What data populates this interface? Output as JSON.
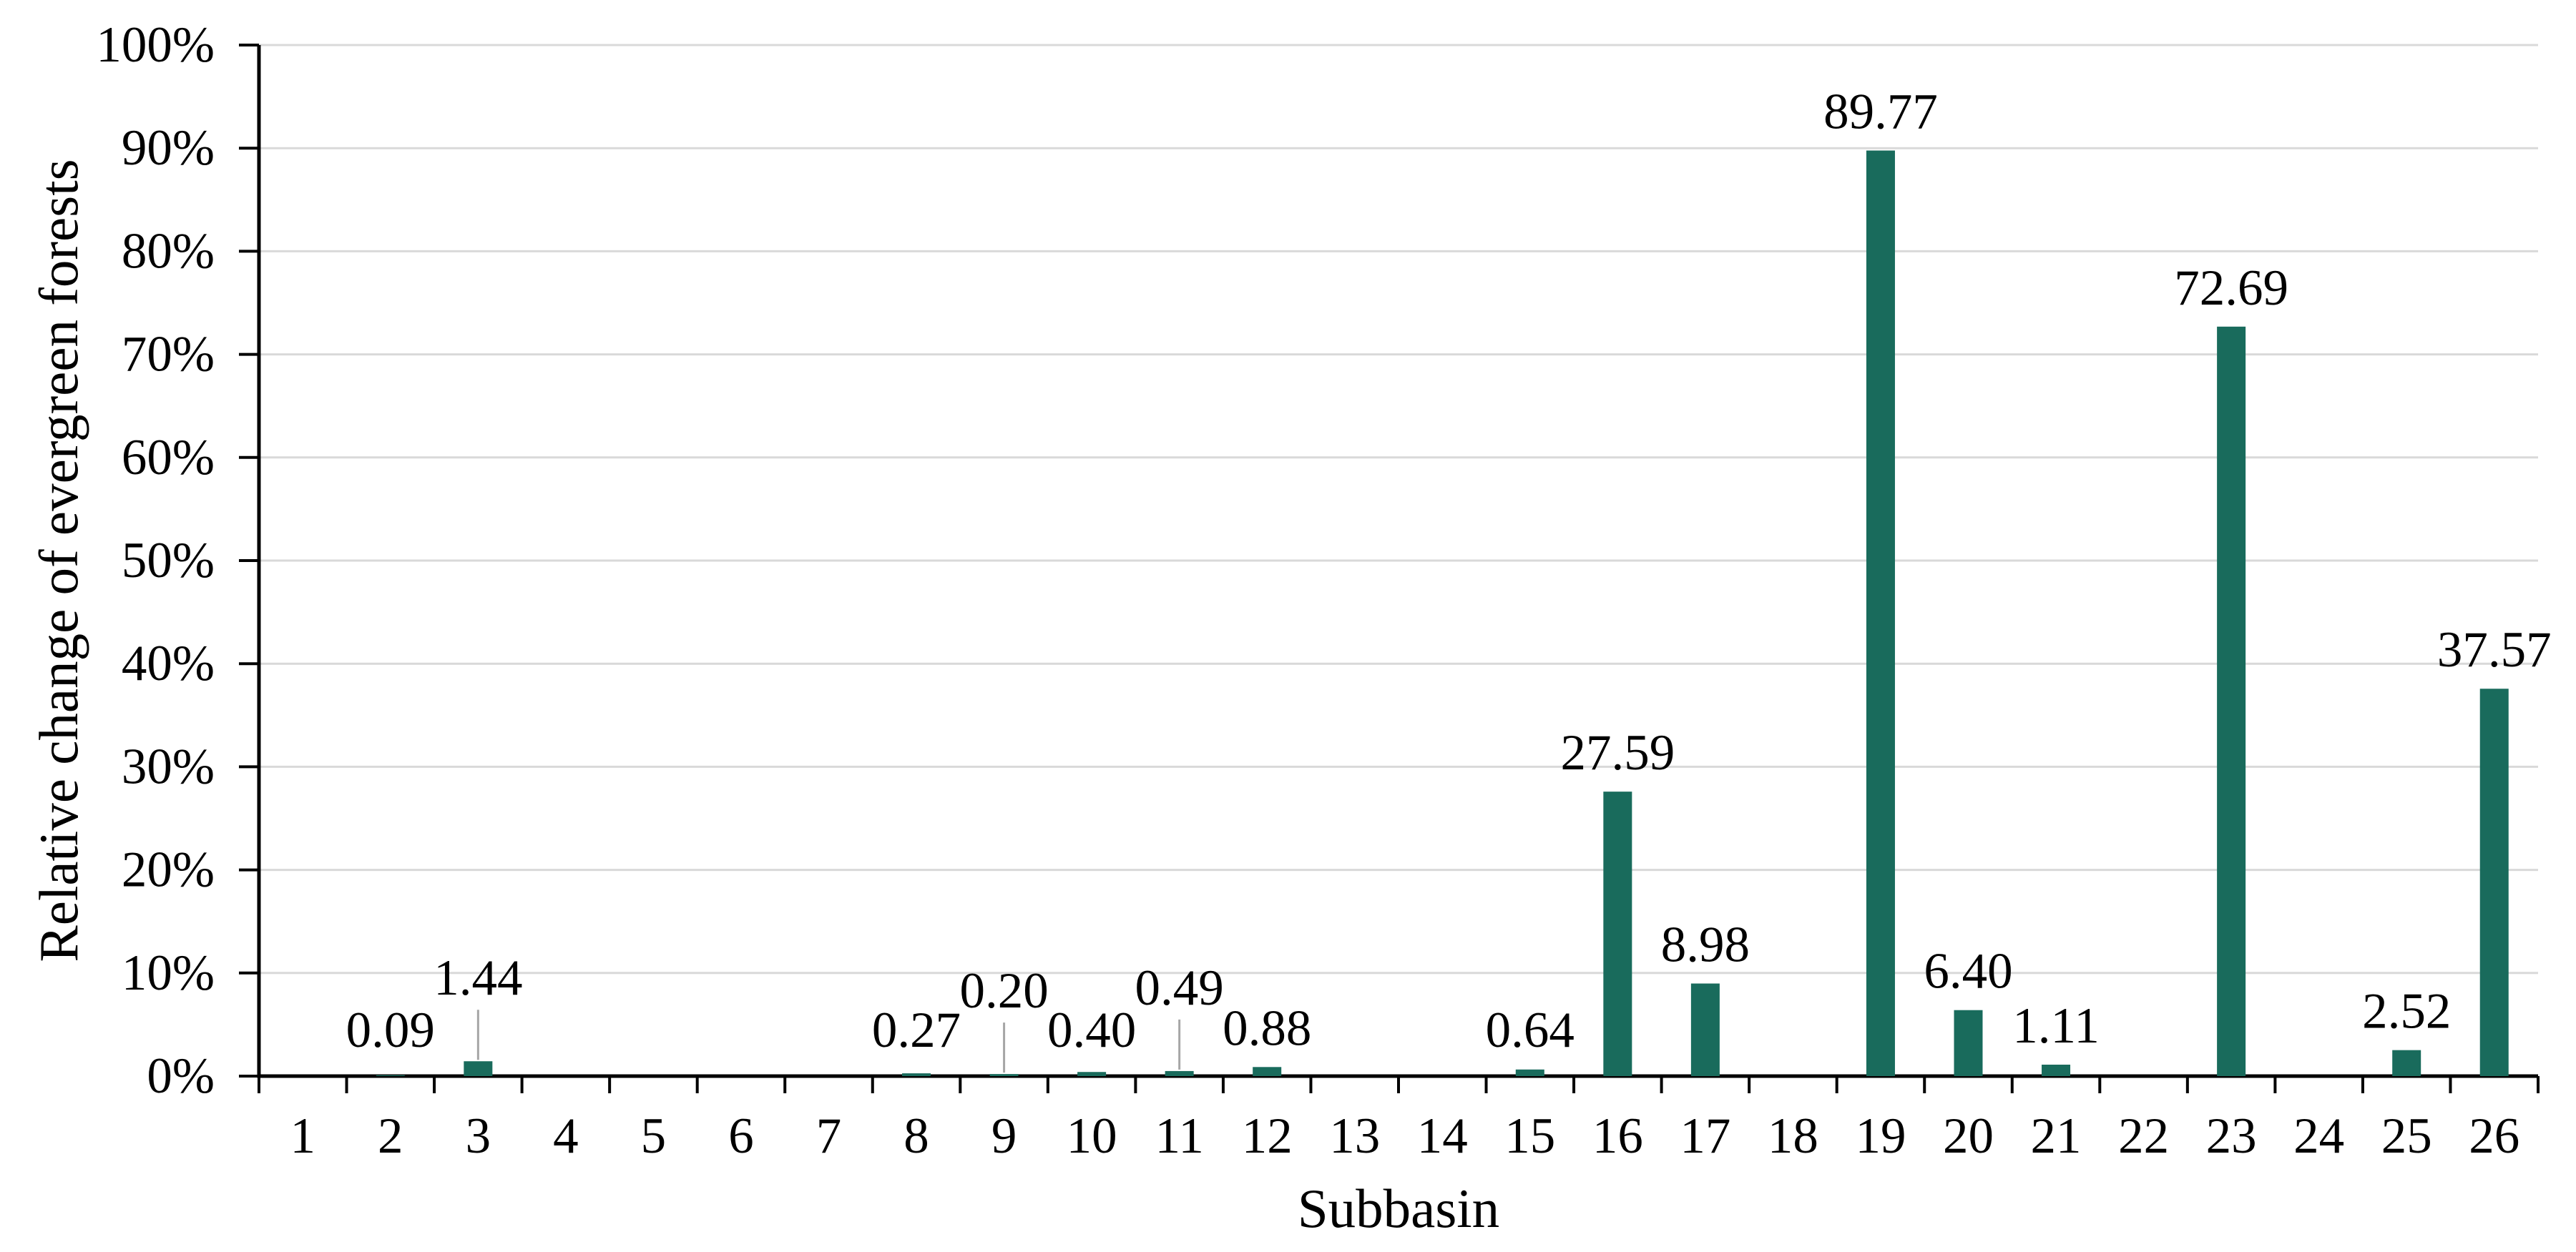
{
  "chart_data": {
    "type": "bar",
    "title": "",
    "xlabel": "Subbasin",
    "ylabel": "Relative change of evergreen forests",
    "categories": [
      "1",
      "2",
      "3",
      "4",
      "5",
      "6",
      "7",
      "8",
      "9",
      "10",
      "11",
      "12",
      "13",
      "14",
      "15",
      "16",
      "17",
      "18",
      "19",
      "20",
      "21",
      "22",
      "23",
      "24",
      "25",
      "26"
    ],
    "values": [
      0,
      0.09,
      1.44,
      0,
      0,
      0,
      0,
      0.27,
      0.2,
      0.4,
      0.49,
      0.88,
      0,
      0,
      0.64,
      27.59,
      8.98,
      0,
      89.77,
      6.4,
      1.11,
      0,
      72.69,
      0,
      2.52,
      37.57
    ],
    "bar_labels": [
      "",
      "0.09",
      "1.44",
      "",
      "",
      "",
      "",
      "0.27",
      "0.20",
      "0.40",
      "0.49",
      "0.88",
      "",
      "",
      "0.64",
      "27.59",
      "8.98",
      "",
      "89.77",
      "6.40",
      "1.11",
      "",
      "72.69",
      "",
      "2.52",
      "37.57"
    ],
    "raised_label_categories": [
      3,
      9,
      11
    ],
    "ylim": [
      0,
      100
    ],
    "ytick_step": 10,
    "ytick_labels": [
      "0%",
      "10%",
      "20%",
      "30%",
      "40%",
      "50%",
      "60%",
      "70%",
      "80%",
      "90%",
      "100%"
    ],
    "grid": "horizontal",
    "legend": "none",
    "colors": {
      "bar": "#196B5C",
      "gridline": "#D9D9D9",
      "axis": "#000000",
      "leader_line": "#A6A6A6",
      "text": "#000000",
      "background": "#FFFFFF"
    }
  }
}
